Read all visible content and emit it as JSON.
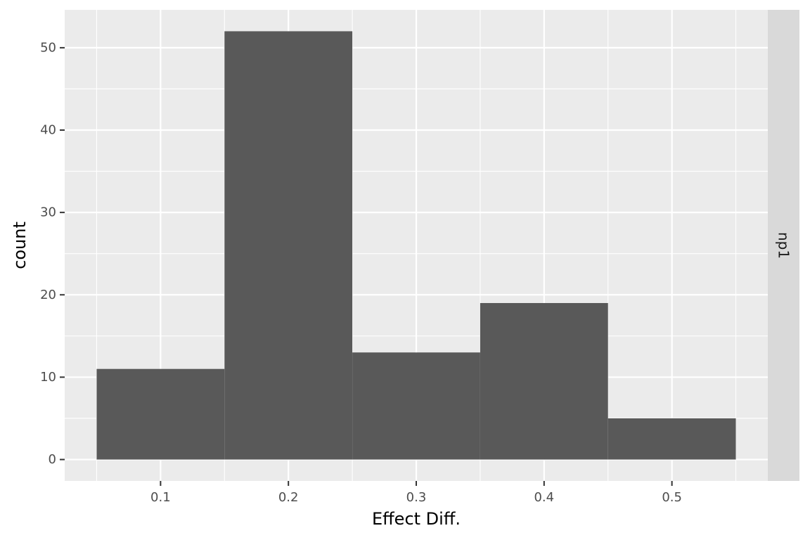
{
  "chart_data": {
    "type": "bar",
    "title": "",
    "xlabel": "Effect Diff.",
    "ylabel": "count",
    "facet_label": "np1",
    "bin_width": 0.1,
    "bins": [
      {
        "x_min": 0.05,
        "x_max": 0.15,
        "count": 11
      },
      {
        "x_min": 0.15,
        "x_max": 0.25,
        "count": 52
      },
      {
        "x_min": 0.25,
        "x_max": 0.35,
        "count": 13
      },
      {
        "x_min": 0.35,
        "x_max": 0.45,
        "count": 19
      },
      {
        "x_min": 0.45,
        "x_max": 0.55,
        "count": 5
      }
    ],
    "xlim": [
      0.025,
      0.575
    ],
    "ylim": [
      -2.6,
      54.6
    ],
    "x_ticks": [
      0.1,
      0.2,
      0.3,
      0.4,
      0.5
    ],
    "x_tick_labels": [
      "0.1",
      "0.2",
      "0.3",
      "0.4",
      "0.5"
    ],
    "y_ticks": [
      0,
      10,
      20,
      30,
      40,
      50
    ],
    "y_tick_labels": [
      "0",
      "10",
      "20",
      "30",
      "40",
      "50"
    ],
    "grid": true,
    "colors": {
      "bar_fill": "#595959",
      "panel_background": "#ebebeb",
      "grid": "#ffffff",
      "strip_background": "#d9d9d9",
      "tick_text": "#4d4d4d",
      "tick_mark": "#333333"
    }
  }
}
